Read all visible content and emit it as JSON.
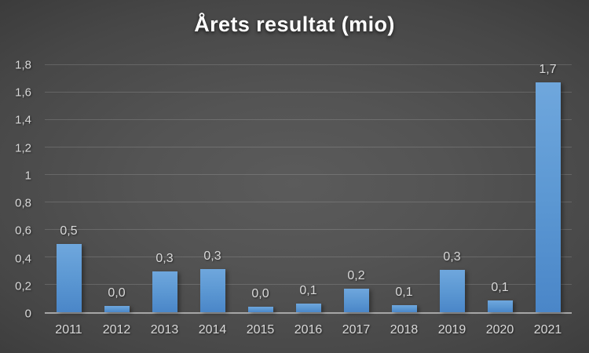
{
  "chart_data": {
    "type": "bar",
    "title": "Årets resultat (mio)",
    "xlabel": "",
    "ylabel": "",
    "categories": [
      "2011",
      "2012",
      "2013",
      "2014",
      "2015",
      "2016",
      "2017",
      "2018",
      "2019",
      "2020",
      "2021"
    ],
    "values": [
      0.5,
      0.0,
      0.3,
      0.3,
      0.0,
      0.1,
      0.2,
      0.1,
      0.3,
      0.1,
      1.7
    ],
    "data_labels": [
      "0,5",
      "0,0",
      "0,3",
      "0,3",
      "0,0",
      "0,1",
      "0,2",
      "0,1",
      "0,3",
      "0,1",
      "1,7"
    ],
    "bar_plot_heights": [
      0.5,
      0.045,
      0.3,
      0.315,
      0.04,
      0.065,
      0.17,
      0.05,
      0.31,
      0.085,
      1.675
    ],
    "ylim": [
      0,
      1.8
    ],
    "ytick_step": 0.2,
    "ytick_labels": [
      "0",
      "0,2",
      "0,4",
      "0,6",
      "0,8",
      "1",
      "1,2",
      "1,4",
      "1,6",
      "1,8"
    ],
    "grid": true,
    "legend": false,
    "colors": {
      "bar_top": "#6fa7dd",
      "bar_bottom": "#4a86c8",
      "background_center": "#5b5b5b",
      "background_edge": "#262626",
      "gridline": "rgba(255,255,255,0.15)",
      "axis_line": "#a6a6a6",
      "label_text": "#d9d9d9",
      "title_text": "#ffffff"
    }
  }
}
